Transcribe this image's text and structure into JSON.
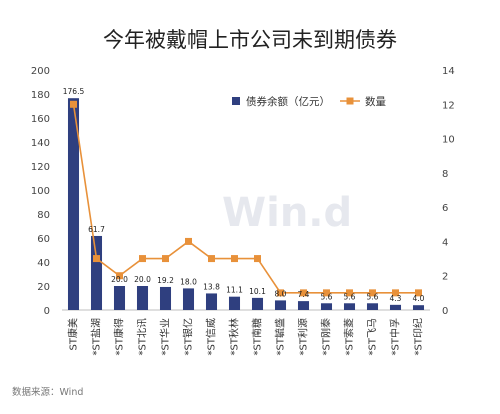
{
  "chart_data": {
    "type": "bar",
    "title": "今年被戴帽上市公司未到期债券",
    "source": "数据来源：Wind",
    "watermark": "Win.d",
    "categories": [
      "ST康美",
      "*ST盐湖",
      "*ST康得",
      "*ST北讯",
      "*ST华业",
      "*ST银亿",
      "*ST信威",
      "*ST秋林",
      "*ST南糖",
      "*ST毓盛",
      "*ST利源",
      "*ST刚泰",
      "*ST索菱",
      "*ST飞马",
      "*ST中孚",
      "*ST印纪"
    ],
    "series": [
      {
        "name": "债券余额（亿元）",
        "type": "bar",
        "axis": "left",
        "color": "#2f3f7f",
        "values": [
          176.5,
          61.7,
          20.0,
          20.0,
          19.2,
          18.0,
          13.8,
          11.1,
          10.1,
          8.0,
          7.4,
          5.6,
          5.6,
          5.6,
          4.3,
          4.0
        ],
        "labels": [
          "176.5",
          "61.7",
          "20.0",
          "20.0",
          "19.2",
          "18.0",
          "13.8",
          "11.1",
          "10.1",
          "8.0",
          "7.4",
          "5.6",
          "5.6",
          "5.6",
          "4.3",
          "4.0"
        ]
      },
      {
        "name": "数量",
        "type": "line",
        "axis": "right",
        "color": "#e8913a",
        "values": [
          12,
          3,
          2,
          3,
          3,
          4,
          3,
          3,
          3,
          1,
          1,
          1,
          1,
          1,
          1,
          1
        ]
      }
    ],
    "y_left": {
      "min": 0,
      "max": 200,
      "step": 20
    },
    "y_right": {
      "min": 0,
      "max": 14,
      "step": 2
    },
    "legend_position": "top-right",
    "grid": false
  }
}
